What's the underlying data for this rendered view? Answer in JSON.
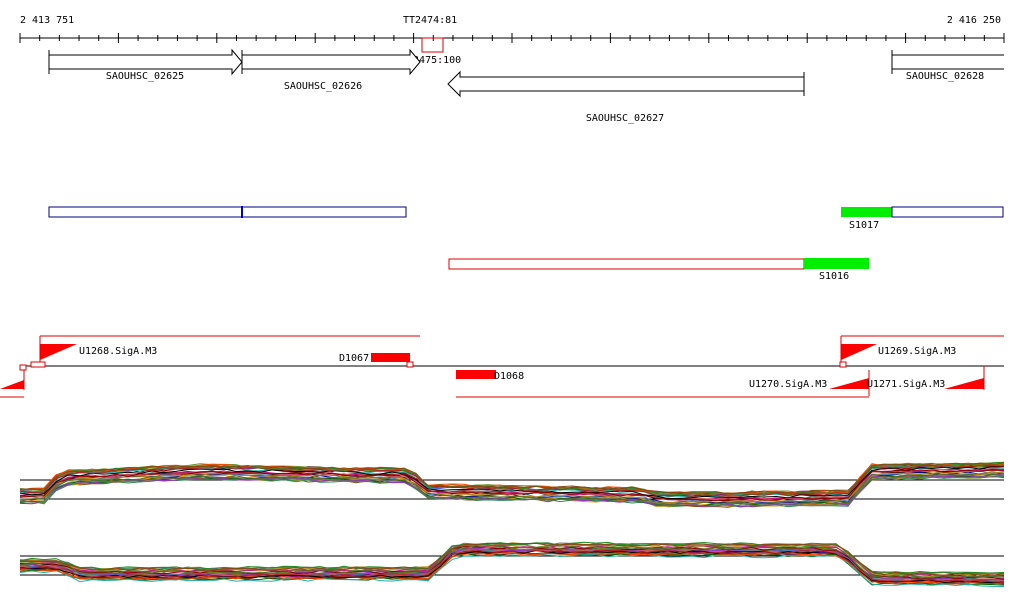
{
  "ruler": {
    "start_label": "2 413 751",
    "end_label": "2 416 250"
  },
  "terminators": [
    {
      "label": "TT2474:81"
    },
    {
      "label": "TT2475:100"
    }
  ],
  "genes": [
    {
      "label": "SAOUHSC_02625",
      "strand": "+"
    },
    {
      "label": "SAOUHSC_02626",
      "strand": "+"
    },
    {
      "label": "SAOUHSC_02627",
      "strand": "-"
    },
    {
      "label": "SAOUHSC_02628",
      "strand": "+"
    }
  ],
  "segments": [
    {
      "label": "S1017"
    },
    {
      "label": "S1016"
    }
  ],
  "features": [
    {
      "label": "U1268.SigA.M3"
    },
    {
      "label": "D1067"
    },
    {
      "label": "D1068"
    },
    {
      "label": "U1270.SigA.M3"
    },
    {
      "label": "U1269.SigA.M3"
    },
    {
      "label": "U1271.SigA.M3"
    }
  ],
  "colors": {
    "plus_strand": "#000080",
    "minus_strand": "#dd0000",
    "highlight": "#00ee00",
    "feature": "#ff0000"
  }
}
